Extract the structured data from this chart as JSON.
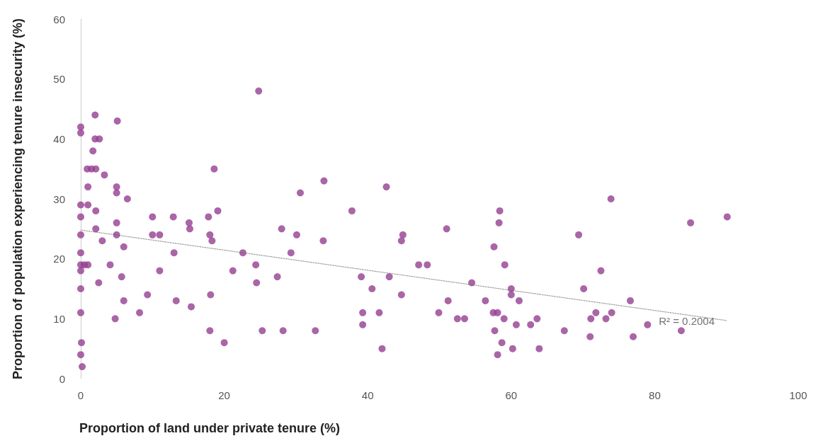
{
  "chart_data": {
    "type": "scatter",
    "xlabel": "Proportion of land under private tenure (%)",
    "ylabel": "Proportion of population experiencing tenure insecurity (%)",
    "xlim": [
      0,
      100
    ],
    "xticks": [
      0,
      20,
      40,
      60,
      80,
      100
    ],
    "ylim": [
      0,
      60
    ],
    "yticks": [
      0,
      10,
      20,
      30,
      40,
      50,
      60
    ],
    "grid": false,
    "marker": "circle",
    "annotations": [
      "R² = 0.2004"
    ],
    "series": [
      {
        "color": "#953f91",
        "x": [
          0,
          0,
          0,
          0,
          0,
          0,
          0,
          0,
          0,
          0,
          0.1,
          0,
          0.2,
          0.5,
          1,
          2,
          5.1,
          2,
          2.6,
          1.7,
          0.9,
          1.5,
          2.1,
          18.6,
          3.3,
          1,
          5,
          5,
          6.5,
          1,
          2.1,
          19.1,
          10,
          12.9,
          17.8,
          15.1,
          5,
          15.2,
          2.1,
          5,
          10,
          11,
          18,
          18.3,
          3,
          6,
          13,
          22.6,
          4.1,
          11,
          21.2,
          5.7,
          2.5,
          9.3,
          18.1,
          6,
          13.3,
          15.4,
          8.2,
          4.8,
          18,
          20,
          24.8,
          33.9,
          30.6,
          42.6,
          37.8,
          28,
          30.1,
          33.8,
          44.7,
          44.9,
          29.3,
          24.4,
          47.1,
          48.3,
          27.4,
          39.1,
          43,
          24.5,
          40.6,
          44.7,
          39.3,
          41.6,
          39.3,
          25.3,
          28.2,
          32.7,
          42,
          73.9,
          58.4,
          58.3,
          51,
          69.4,
          57.6,
          59.1,
          72.5,
          54.5,
          60,
          70.1,
          60,
          51.2,
          56.4,
          61.1,
          76.6,
          49.9,
          57.5,
          58.1,
          71.8,
          74,
          52.5,
          53.5,
          59,
          63.6,
          71.1,
          73.2,
          60.7,
          62.7,
          57.7,
          67.4,
          71,
          77,
          58.7,
          60.2,
          63.9,
          58.1,
          85,
          90.1,
          83.7,
          79
        ],
        "values": [
          42,
          41,
          29,
          27,
          24,
          21,
          19,
          18,
          15,
          11,
          6,
          4,
          2,
          19,
          19,
          44,
          43,
          40,
          40,
          38,
          35,
          35,
          35,
          35,
          34,
          32,
          32,
          31,
          30,
          29,
          28,
          28,
          27,
          27,
          27,
          26,
          26,
          25,
          25,
          24,
          24,
          24,
          24,
          23,
          23,
          22,
          21,
          21,
          19,
          18,
          18,
          17,
          16,
          14,
          14,
          13,
          13,
          12,
          11,
          10,
          8,
          6,
          48,
          33,
          31,
          32,
          28,
          25,
          24,
          23,
          23,
          24,
          21,
          19,
          19,
          19,
          17,
          17,
          17,
          16,
          15,
          14,
          11,
          11,
          9,
          8,
          8,
          8,
          5,
          30,
          28,
          26,
          25,
          24,
          22,
          19,
          18,
          16,
          15,
          15,
          14,
          13,
          13,
          13,
          13,
          11,
          11,
          11,
          11,
          11,
          10,
          10,
          10,
          10,
          10,
          10,
          9,
          9,
          8,
          8,
          7,
          7,
          6,
          5,
          5,
          4,
          26,
          27,
          8,
          9
        ]
      },
      {
        "type": "line",
        "color": "#666666",
        "line_style": "dotted",
        "marker": "none",
        "x": [
          0,
          90
        ],
        "values": [
          24.8,
          9.7
        ]
      }
    ]
  }
}
